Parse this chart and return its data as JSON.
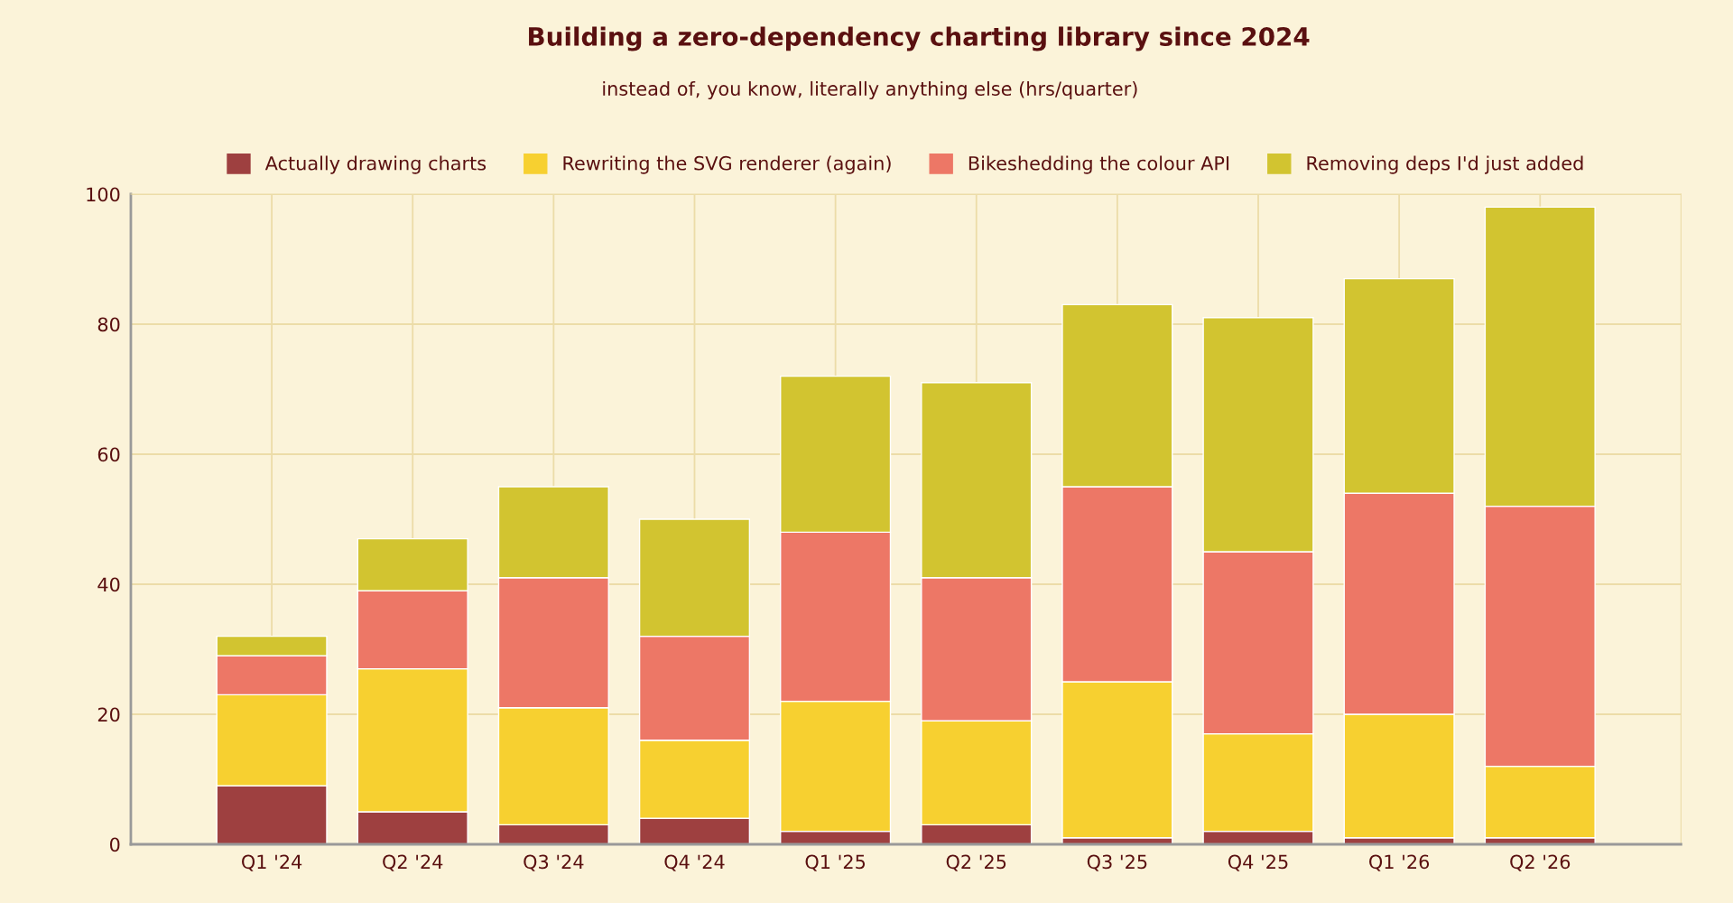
{
  "chart_data": {
    "type": "bar",
    "title": "Building a zero-dependency charting library since 2024",
    "subtitle": "instead of, you know, literally anything else (hrs/quarter)",
    "categories": [
      "Q1 '24",
      "Q2 '24",
      "Q3 '24",
      "Q4 '24",
      "Q1 '25",
      "Q2 '25",
      "Q3 '25",
      "Q4 '25",
      "Q1 '26",
      "Q2 '26"
    ],
    "stacked": true,
    "series": [
      {
        "name": "Actually drawing charts",
        "color": "#9e4040",
        "values": [
          9,
          5,
          3,
          4,
          2,
          3,
          1,
          2,
          1,
          1
        ]
      },
      {
        "name": "Rewriting the SVG renderer (again)",
        "color": "#f7d030",
        "values": [
          14,
          22,
          18,
          12,
          20,
          16,
          24,
          15,
          19,
          11
        ]
      },
      {
        "name": "Bikeshedding the colour API",
        "color": "#ed7766",
        "values": [
          6,
          12,
          20,
          16,
          26,
          22,
          30,
          28,
          34,
          40
        ]
      },
      {
        "name": "Removing deps I'd just added",
        "color": "#d2c430",
        "values": [
          3,
          8,
          14,
          18,
          24,
          30,
          28,
          36,
          33,
          46
        ]
      }
    ],
    "ylim": [
      0,
      100
    ],
    "yticks": [
      0,
      20,
      40,
      60,
      80,
      100
    ],
    "grid": true,
    "legend": "top"
  }
}
